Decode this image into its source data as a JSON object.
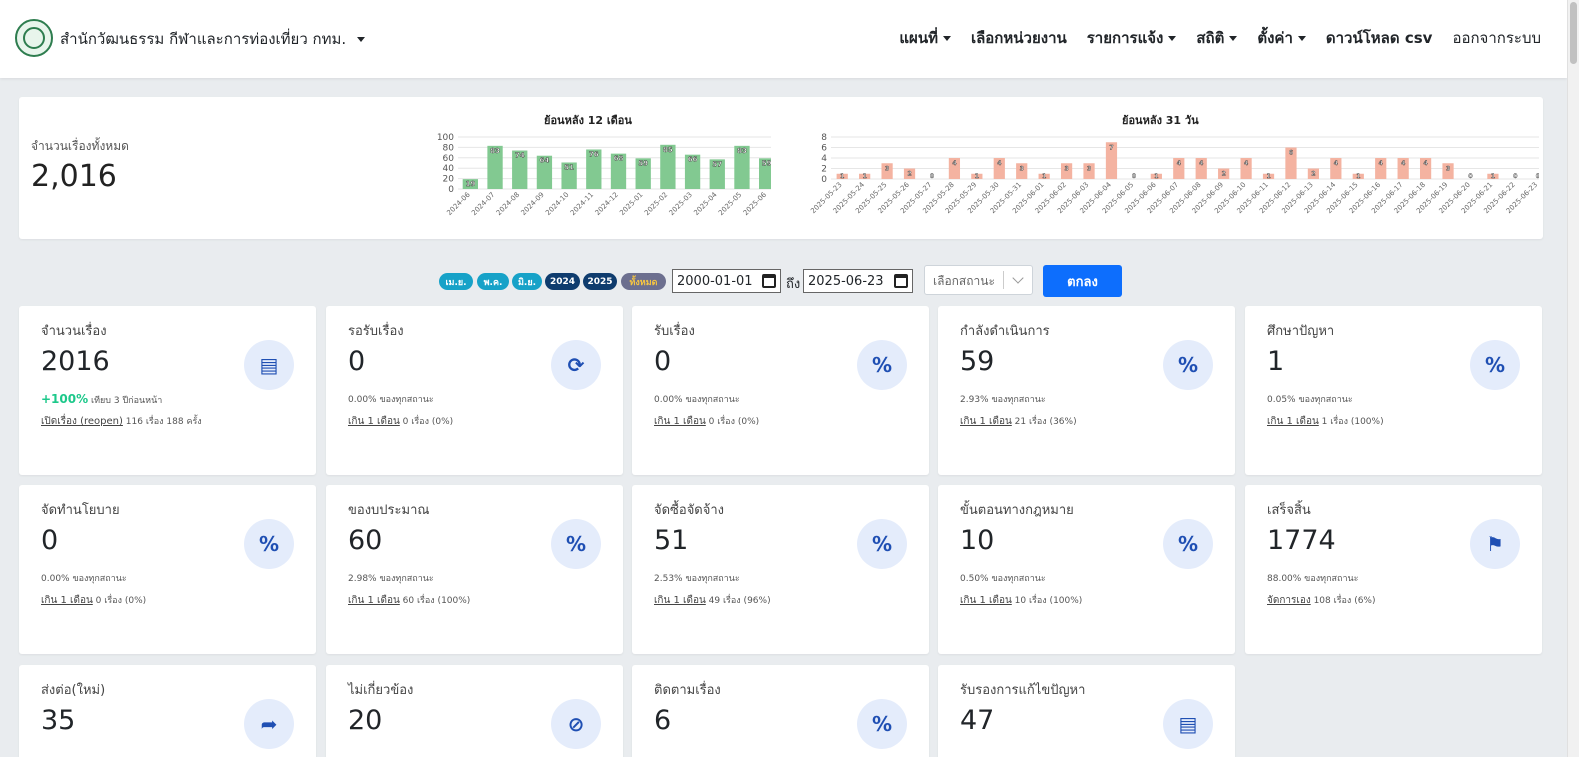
{
  "header": {
    "brand": "สำนักวัฒนธรรม กีฬาและการท่องเที่ยว กทม.",
    "nav": [
      {
        "label": "แผนที่",
        "dropdown": true
      },
      {
        "label": "เลือกหน่วยงาน",
        "dropdown": false
      },
      {
        "label": "รายการแจ้ง",
        "dropdown": true
      },
      {
        "label": "สถิติ",
        "dropdown": true
      },
      {
        "label": "ตั้งค่า",
        "dropdown": true
      },
      {
        "label": "ดาวน์โหลด csv",
        "dropdown": false
      },
      {
        "label": "ออกจากระบบ",
        "dropdown": false
      }
    ]
  },
  "summary": {
    "label": "จำนวนเรื่องทั้งหมด",
    "value": "2,016"
  },
  "chart_data": [
    {
      "type": "bar",
      "title": "ย้อนหลัง 12 เดือน",
      "categories": [
        "2024-06",
        "2024-07",
        "2024-08",
        "2024-09",
        "2024-10",
        "2024-11",
        "2024-12",
        "2025-01",
        "2025-02",
        "2025-03",
        "2025-04",
        "2025-05",
        "2025-06"
      ],
      "values": [
        19,
        83,
        74,
        64,
        51,
        76,
        68,
        59,
        85,
        66,
        57,
        83,
        59
      ],
      "ylim": [
        0,
        100
      ],
      "yticks": [
        0,
        20,
        40,
        60,
        80,
        100
      ],
      "color": "#82c991",
      "grid": true
    },
    {
      "type": "bar",
      "title": "ย้อนหลัง 31 วัน",
      "categories": [
        "2025-05-23",
        "2025-05-24",
        "2025-05-25",
        "2025-05-26",
        "2025-05-27",
        "2025-05-28",
        "2025-05-29",
        "2025-05-30",
        "2025-05-31",
        "2025-06-01",
        "2025-06-02",
        "2025-06-03",
        "2025-06-04",
        "2025-06-05",
        "2025-06-06",
        "2025-06-07",
        "2025-06-08",
        "2025-06-09",
        "2025-06-10",
        "2025-06-11",
        "2025-06-12",
        "2025-06-13",
        "2025-06-14",
        "2025-06-15",
        "2025-06-16",
        "2025-06-17",
        "2025-06-18",
        "2025-06-19",
        "2025-06-20",
        "2025-06-21",
        "2025-06-22",
        "2025-06-23"
      ],
      "values": [
        1,
        1,
        3,
        2,
        0,
        4,
        1,
        4,
        3,
        1,
        3,
        3,
        7,
        0,
        1,
        4,
        4,
        2,
        4,
        1,
        6,
        2,
        4,
        1,
        4,
        4,
        4,
        3,
        0,
        1,
        0,
        0
      ],
      "ylim": [
        0,
        8
      ],
      "yticks": [
        0,
        2,
        4,
        6,
        8
      ],
      "color": "#f4b3a1",
      "grid": true
    }
  ],
  "filter": {
    "pills": [
      {
        "label": "เม.ย.",
        "color": "#17a2c8"
      },
      {
        "label": "พ.ค.",
        "color": "#17a2c8"
      },
      {
        "label": "มิ.ย.",
        "color": "#17a2c8"
      },
      {
        "label": "2024",
        "color": "#0f3c6e"
      },
      {
        "label": "2025",
        "color": "#0f3c6e"
      },
      {
        "label": "ทั้งหมด",
        "color": "#6c6f8f",
        "text_color": "#f5c542"
      }
    ],
    "date_from": "2000-01-01",
    "to_label": "ถึง",
    "date_to": "2025-06-23",
    "status_placeholder": "เลือกสถานะ",
    "ok_label": "ตกลง"
  },
  "stats": [
    {
      "title": "จำนวนเรื่อง",
      "value": "2016",
      "pct": "+100%",
      "sub": "เทียบ 3 ปีก่อนหน้า",
      "link": "เปิดเรื่อง (reopen)",
      "link_tail": "116 เรื่อง 188 ครั้ง",
      "icon": "document-stack-icon"
    },
    {
      "title": "รอรับเรื่อง",
      "value": "0",
      "sub": "0.00% ของทุกสถานะ",
      "link": "เกิน 1 เดือน",
      "link_tail": "0 เรื่อง (0%)",
      "icon": "refresh-icon"
    },
    {
      "title": "รับเรื่อง",
      "value": "0",
      "sub": "0.00% ของทุกสถานะ",
      "link": "เกิน 1 เดือน",
      "link_tail": "0 เรื่อง (0%)",
      "icon": "percent-icon"
    },
    {
      "title": "กำลังดำเนินการ",
      "value": "59",
      "sub": "2.93% ของทุกสถานะ",
      "link": "เกิน 1 เดือน",
      "link_tail": "21 เรื่อง (36%)",
      "icon": "percent-icon"
    },
    {
      "title": "ศึกษาปัญหา",
      "value": "1",
      "sub": "0.05% ของทุกสถานะ",
      "link": "เกิน 1 เดือน",
      "link_tail": "1 เรื่อง (100%)",
      "icon": "percent-icon"
    },
    {
      "title": "จัดทำนโยบาย",
      "value": "0",
      "sub": "0.00% ของทุกสถานะ",
      "link": "เกิน 1 เดือน",
      "link_tail": "0 เรื่อง (0%)",
      "icon": "percent-icon"
    },
    {
      "title": "ของบประมาณ",
      "value": "60",
      "sub": "2.98% ของทุกสถานะ",
      "link": "เกิน 1 เดือน",
      "link_tail": "60 เรื่อง (100%)",
      "icon": "percent-icon"
    },
    {
      "title": "จัดซื้อจัดจ้าง",
      "value": "51",
      "sub": "2.53% ของทุกสถานะ",
      "link": "เกิน 1 เดือน",
      "link_tail": "49 เรื่อง (96%)",
      "icon": "percent-icon"
    },
    {
      "title": "ขั้นตอนทางกฎหมาย",
      "value": "10",
      "sub": "0.50% ของทุกสถานะ",
      "link": "เกิน 1 เดือน",
      "link_tail": "10 เรื่อง (100%)",
      "icon": "percent-icon"
    },
    {
      "title": "เสร็จสิ้น",
      "value": "1774",
      "sub": "88.00% ของทุกสถานะ",
      "link": "จัดการเอง",
      "link_tail": "108 เรื่อง (6%)",
      "icon": "checkered-flag-icon"
    },
    {
      "title": "ส่งต่อ(ใหม่)",
      "value": "35",
      "icon": "share-arrow-icon"
    },
    {
      "title": "ไม่เกี่ยวข้อง",
      "value": "20",
      "icon": "comment-slash-icon"
    },
    {
      "title": "ติดตามเรื่อง",
      "value": "6",
      "icon": "percent-icon"
    },
    {
      "title": "รับรองการแก้ไขปัญหา",
      "value": "47",
      "icon": "document-stack-icon"
    }
  ]
}
